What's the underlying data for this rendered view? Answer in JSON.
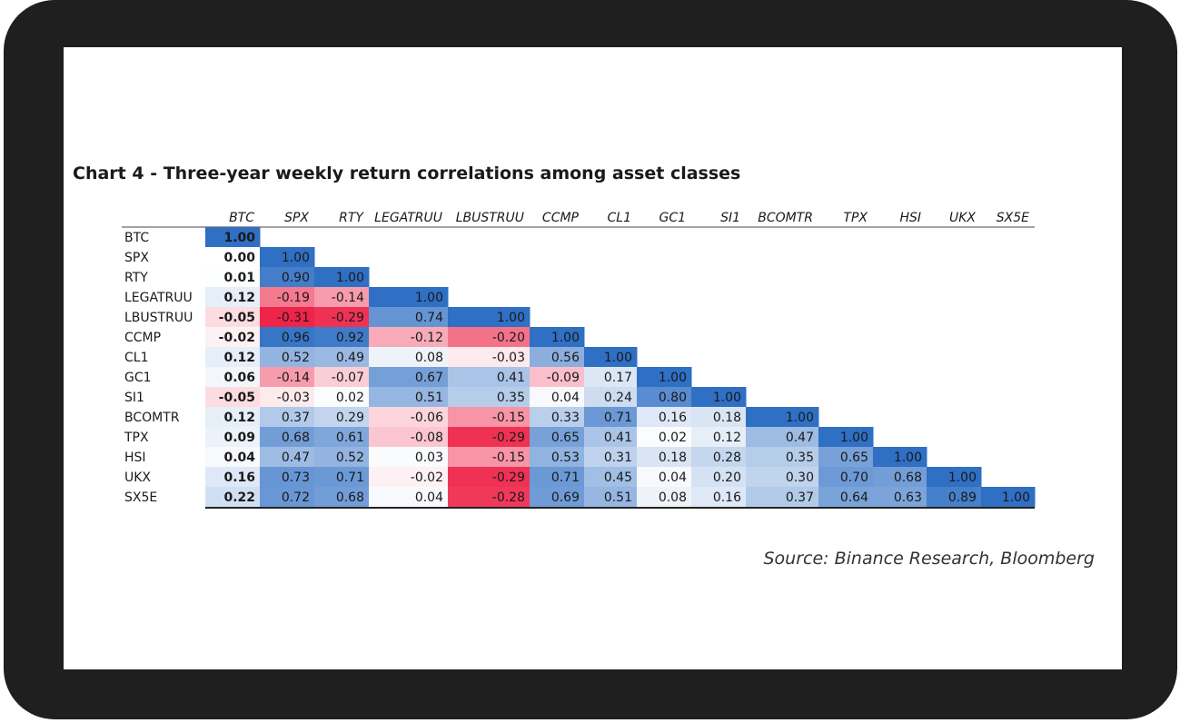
{
  "title": "Chart 4 - Three-year weekly return correlations among asset classes",
  "source": "Source: Binance Research, Bloomberg",
  "colors": {
    "positive_max": "#2F6FC4",
    "neutral": "#FFFFFF",
    "negative_max": "#EE2448",
    "frame": "#1F1F1F"
  },
  "chart_data": {
    "type": "heatmap",
    "title": "Chart 4 - Three-year weekly return correlations among asset classes",
    "columns": [
      "BTC",
      "SPX",
      "RTY",
      "LEGATRUU",
      "LBUSTRUU",
      "CCMP",
      "CL1",
      "GC1",
      "SI1",
      "BCOMTR",
      "TPX",
      "HSI",
      "UKX",
      "SX5E"
    ],
    "rows": [
      "BTC",
      "SPX",
      "RTY",
      "LEGATRUU",
      "LBUSTRUU",
      "CCMP",
      "CL1",
      "GC1",
      "SI1",
      "BCOMTR",
      "TPX",
      "HSI",
      "UKX",
      "SX5E"
    ],
    "values": [
      [
        "1.00"
      ],
      [
        "0.00",
        "1.00"
      ],
      [
        "0.01",
        "0.90",
        "1.00"
      ],
      [
        "0.12",
        "-0.19",
        "-0.14",
        "1.00"
      ],
      [
        "-0.05",
        "-0.31",
        "-0.29",
        "0.74",
        "1.00"
      ],
      [
        "-0.02",
        "0.96",
        "0.92",
        "-0.12",
        "-0.20",
        "1.00"
      ],
      [
        "0.12",
        "0.52",
        "0.49",
        "0.08",
        "-0.03",
        "0.56",
        "1.00"
      ],
      [
        "0.06",
        "-0.14",
        "-0.07",
        "0.67",
        "0.41",
        "-0.09",
        "0.17",
        "1.00"
      ],
      [
        "-0.05",
        "-0.03",
        "0.02",
        "0.51",
        "0.35",
        "0.04",
        "0.24",
        "0.80",
        "1.00"
      ],
      [
        "0.12",
        "0.37",
        "0.29",
        "-0.06",
        "-0.15",
        "0.33",
        "0.71",
        "0.16",
        "0.18",
        "1.00"
      ],
      [
        "0.09",
        "0.68",
        "0.61",
        "-0.08",
        "-0.29",
        "0.65",
        "0.41",
        "0.02",
        "0.12",
        "0.47",
        "1.00"
      ],
      [
        "0.04",
        "0.47",
        "0.52",
        "0.03",
        "-0.15",
        "0.53",
        "0.31",
        "0.18",
        "0.28",
        "0.35",
        "0.65",
        "1.00"
      ],
      [
        "0.16",
        "0.73",
        "0.71",
        "-0.02",
        "-0.29",
        "0.71",
        "0.45",
        "0.04",
        "0.20",
        "0.30",
        "0.70",
        "0.68",
        "1.00"
      ],
      [
        "0.22",
        "0.72",
        "0.68",
        "0.04",
        "-0.28",
        "0.69",
        "0.51",
        "0.08",
        "0.16",
        "0.37",
        "0.64",
        "0.63",
        "0.89",
        "1.00"
      ]
    ],
    "lower_triangle": true,
    "bold_column": "BTC",
    "legend": "none"
  }
}
